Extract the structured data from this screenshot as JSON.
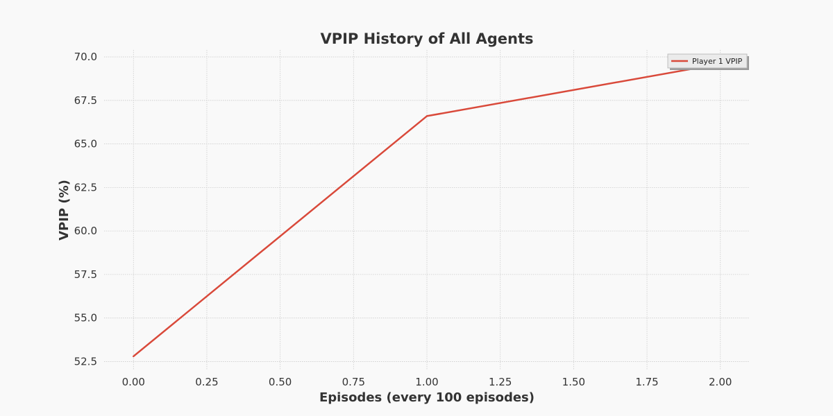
{
  "chart_data": {
    "type": "line",
    "title": "VPIP History of All Agents",
    "xlabel": "Episodes (every 100 episodes)",
    "ylabel": "VPIP (%)",
    "xlim": [
      -0.1,
      2.1
    ],
    "ylim": [
      52.0,
      70.4
    ],
    "xticks": [
      0.0,
      0.25,
      0.5,
      0.75,
      1.0,
      1.25,
      1.5,
      1.75,
      2.0
    ],
    "xtick_labels": [
      "0.00",
      "0.25",
      "0.50",
      "0.75",
      "1.00",
      "1.25",
      "1.50",
      "1.75",
      "2.00"
    ],
    "yticks": [
      52.5,
      55.0,
      57.5,
      60.0,
      62.5,
      65.0,
      67.5,
      70.0
    ],
    "ytick_labels": [
      "52.5",
      "55.0",
      "57.5",
      "60.0",
      "62.5",
      "65.0",
      "67.5",
      "70.0"
    ],
    "grid": true,
    "legend_position": "top-right",
    "series": [
      {
        "name": "Player 1 VPIP",
        "color": "#d9493a",
        "x": [
          0,
          1,
          2
        ],
        "y": [
          52.8,
          66.6,
          69.6
        ]
      }
    ]
  }
}
